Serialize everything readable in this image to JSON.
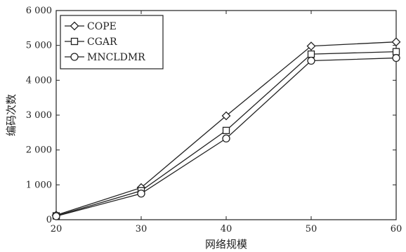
{
  "chart_data": {
    "type": "line",
    "title": "",
    "xlabel": "网络规模",
    "ylabel": "编码次数",
    "x": [
      20,
      30,
      40,
      50,
      60
    ],
    "x_ticks": [
      "20",
      "30",
      "40",
      "50",
      "60"
    ],
    "y_ticks": [
      "0",
      "1 000",
      "2 000",
      "3 000",
      "4 000",
      "5 000",
      "6 000"
    ],
    "xlim": [
      20,
      60
    ],
    "ylim": [
      0,
      6000
    ],
    "grid": false,
    "legend_position": "top-left",
    "series": [
      {
        "name": "COPE",
        "marker": "diamond",
        "values": [
          130,
          920,
          2980,
          4980,
          5100
        ]
      },
      {
        "name": "CGAR",
        "marker": "square",
        "values": [
          110,
          830,
          2560,
          4750,
          4820
        ]
      },
      {
        "name": "MNCLDMR",
        "marker": "circle",
        "values": [
          100,
          750,
          2330,
          4560,
          4640
        ]
      }
    ]
  }
}
